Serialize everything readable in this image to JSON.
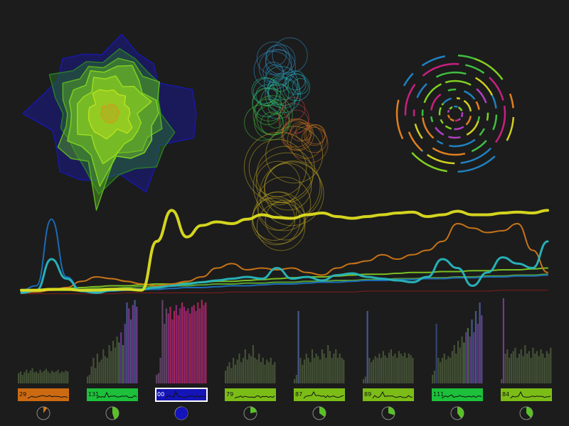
{
  "palette": {
    "background": "#1c1c1c",
    "yellow": "#dede21",
    "teal": "#28b8c0",
    "orange": "#d07818",
    "green": "#7ec824",
    "darkred": "#8a1c1c",
    "blue": "#1060b0",
    "magenta": "#c02088",
    "tile_orange": "#cc6a12",
    "tile_green": "#1cc03a",
    "tile_blue": "#1414b8",
    "tile_lime": "#7bbd16"
  },
  "chart_data": [
    {
      "type": "area",
      "description_key": "radial-blobs-cluster",
      "series": [
        {
          "color": "#1818a8",
          "scale": 1.0
        },
        {
          "color": "#2a7a2a",
          "scale": 0.82
        },
        {
          "color": "#5ab020",
          "scale": 0.7
        },
        {
          "color": "#7ed024",
          "scale": 0.6
        },
        {
          "color": "#9adc20",
          "scale": 0.48
        },
        {
          "color": "#b8e020",
          "scale": 0.3
        },
        {
          "color": "#c8a020",
          "scale": 0.12
        }
      ]
    },
    {
      "type": "scatter",
      "description_key": "bubble-stack",
      "groups": [
        {
          "color": "#3090c8",
          "count": 9
        },
        {
          "color": "#20b0c0",
          "count": 8
        },
        {
          "color": "#28c090",
          "count": 7
        },
        {
          "color": "#40c040",
          "count": 9
        },
        {
          "color": "#c04040",
          "count": 3
        },
        {
          "color": "#c07020",
          "count": 10
        },
        {
          "color": "#b8a020",
          "count": 16
        }
      ]
    },
    {
      "type": "pie",
      "description_key": "concentric-ring-segments",
      "rings": 7,
      "colors": [
        "#e08020",
        "#c82080",
        "#40c040",
        "#80d020",
        "#2080c0",
        "#b040c0",
        "#d0d020"
      ]
    },
    {
      "type": "line",
      "description_key": "time-series-streams",
      "ylim": [
        0,
        1
      ],
      "series": [
        {
          "color": "#dede21",
          "width": 4,
          "values": [
            0.05,
            0.05,
            0.06,
            0.06,
            0.05,
            0.05,
            0.06,
            0.06,
            0.05,
            0.6,
            0.95,
            0.65,
            0.78,
            0.82,
            0.8,
            0.85,
            0.9,
            0.87,
            0.86,
            0.9,
            0.92,
            0.88,
            0.86,
            0.88,
            0.9,
            0.92,
            0.93,
            0.88,
            0.9,
            0.94,
            0.9,
            0.9,
            0.92,
            0.93,
            0.92,
            0.95
          ]
        },
        {
          "color": "#28b8c0",
          "width": 3,
          "values": [
            0.02,
            0.05,
            0.4,
            0.18,
            0.04,
            0.02,
            0.05,
            0.06,
            0.06,
            0.08,
            0.1,
            0.12,
            0.14,
            0.16,
            0.18,
            0.2,
            0.18,
            0.3,
            0.18,
            0.2,
            0.16,
            0.22,
            0.24,
            0.2,
            0.18,
            0.16,
            0.14,
            0.2,
            0.4,
            0.3,
            0.1,
            0.25,
            0.42,
            0.35,
            0.3,
            0.6
          ]
        },
        {
          "color": "#1a70c0",
          "width": 2,
          "values": [
            0.05,
            0.1,
            0.85,
            0.2,
            0.05,
            0.03,
            0.04,
            0.05,
            0.06,
            0.06,
            0.07,
            0.08,
            0.08,
            0.09,
            0.1,
            0.1,
            0.11,
            0.12,
            0.12,
            0.13,
            0.14,
            0.14,
            0.15,
            0.16,
            0.16,
            0.17,
            0.17,
            0.18,
            0.18,
            0.19,
            0.19,
            0.2,
            0.2,
            0.21,
            0.21,
            0.22
          ]
        },
        {
          "color": "#d07818",
          "width": 2,
          "values": [
            0.02,
            0.03,
            0.05,
            0.08,
            0.15,
            0.2,
            0.18,
            0.15,
            0.12,
            0.1,
            0.12,
            0.15,
            0.2,
            0.3,
            0.35,
            0.28,
            0.3,
            0.28,
            0.3,
            0.25,
            0.22,
            0.3,
            0.35,
            0.38,
            0.45,
            0.4,
            0.45,
            0.5,
            0.6,
            0.8,
            0.75,
            0.7,
            0.72,
            0.8,
            0.5,
            0.25
          ]
        },
        {
          "color": "#7ec824",
          "width": 2,
          "values": [
            0.04,
            0.05,
            0.06,
            0.07,
            0.08,
            0.09,
            0.1,
            0.1,
            0.11,
            0.12,
            0.12,
            0.13,
            0.14,
            0.15,
            0.15,
            0.16,
            0.17,
            0.18,
            0.19,
            0.2,
            0.2,
            0.21,
            0.22,
            0.23,
            0.23,
            0.24,
            0.25,
            0.25,
            0.26,
            0.26,
            0.27,
            0.27,
            0.28,
            0.28,
            0.29,
            0.3
          ]
        },
        {
          "color": "#5aa830",
          "width": 2,
          "values": [
            0.03,
            0.04,
            0.05,
            0.05,
            0.06,
            0.07,
            0.07,
            0.08,
            0.09,
            0.09,
            0.1,
            0.1,
            0.11,
            0.12,
            0.12,
            0.13,
            0.13,
            0.14,
            0.14,
            0.15,
            0.15,
            0.16,
            0.16,
            0.17,
            0.17,
            0.18,
            0.18,
            0.19,
            0.19,
            0.2,
            0.2,
            0.21,
            0.21,
            0.22,
            0.22,
            0.23
          ]
        },
        {
          "color": "#8a1c1c",
          "width": 1,
          "values": [
            0.01,
            0.01,
            0.01,
            0.01,
            0.01,
            0.01,
            0.01,
            0.02,
            0.02,
            0.02,
            0.02,
            0.02,
            0.02,
            0.02,
            0.03,
            0.03,
            0.03,
            0.03,
            0.03,
            0.03,
            0.03,
            0.03,
            0.03,
            0.04,
            0.04,
            0.04,
            0.04,
            0.04,
            0.04,
            0.04,
            0.04,
            0.04,
            0.05,
            0.05,
            0.05,
            0.05
          ]
        }
      ]
    },
    {
      "type": "bar",
      "description_key": "small-multiples",
      "panels": [
        {
          "label": "29",
          "tile_color": "#cc6a12",
          "selected": false,
          "pie_fraction": 0.1,
          "spark_peak": 0.2,
          "bars": [
            0.12,
            0.14,
            0.1,
            0.13,
            0.16,
            0.12,
            0.15,
            0.18,
            0.13,
            0.14,
            0.12,
            0.16,
            0.13,
            0.15,
            0.17,
            0.14,
            0.12,
            0.15,
            0.13,
            0.14,
            0.16,
            0.12,
            0.14,
            0.13,
            0.15,
            0.14
          ]
        },
        {
          "label": "131",
          "tile_color": "#1cc03a",
          "selected": false,
          "pie_fraction": 0.45,
          "spark_peak": 0.8,
          "bars": [
            0.08,
            0.1,
            0.2,
            0.3,
            0.18,
            0.35,
            0.25,
            0.28,
            0.4,
            0.32,
            0.3,
            0.45,
            0.38,
            0.5,
            0.42,
            0.55,
            0.48,
            0.6,
            0.45,
            0.7,
            0.95,
            0.88,
            0.75,
            0.92,
            0.98,
            0.9
          ]
        },
        {
          "label": "00",
          "tile_color": "#1414b8",
          "selected": true,
          "pie_fraction": 0.7,
          "spark_peak": 1.0,
          "bars": [
            0.1,
            0.12,
            0.3,
            0.98,
            0.7,
            0.88,
            0.82,
            0.9,
            0.75,
            0.85,
            0.92,
            0.8,
            0.88,
            0.95,
            0.9,
            0.85,
            0.88,
            0.82,
            0.9,
            0.92,
            0.85,
            0.95,
            0.88,
            0.98,
            0.92,
            0.95
          ]
        },
        {
          "label": "79",
          "tile_color": "#7bbd16",
          "selected": false,
          "pie_fraction": 0.22,
          "spark_peak": 0.3,
          "bars": [
            0.15,
            0.2,
            0.25,
            0.18,
            0.3,
            0.22,
            0.28,
            0.35,
            0.25,
            0.3,
            0.4,
            0.28,
            0.35,
            0.32,
            0.45,
            0.3,
            0.28,
            0.35,
            0.25,
            0.3,
            0.22,
            0.28,
            0.25,
            0.3,
            0.22,
            0.25
          ]
        },
        {
          "label": "87",
          "tile_color": "#7bbd16",
          "selected": false,
          "pie_fraction": 0.35,
          "spark_peak": 0.9,
          "bars": [
            0.05,
            0.1,
            0.85,
            0.3,
            0.22,
            0.28,
            0.35,
            0.3,
            0.25,
            0.4,
            0.3,
            0.35,
            0.32,
            0.28,
            0.4,
            0.35,
            0.3,
            0.45,
            0.38,
            0.3,
            0.35,
            0.4,
            0.3,
            0.35,
            0.3,
            0.28
          ]
        },
        {
          "label": "89",
          "tile_color": "#7bbd16",
          "selected": false,
          "pie_fraction": 0.3,
          "spark_peak": 0.9,
          "bars": [
            0.05,
            0.08,
            0.85,
            0.3,
            0.25,
            0.28,
            0.32,
            0.3,
            0.35,
            0.3,
            0.38,
            0.33,
            0.3,
            0.36,
            0.4,
            0.32,
            0.35,
            0.3,
            0.38,
            0.35,
            0.32,
            0.36,
            0.3,
            0.35,
            0.33,
            0.3
          ]
        },
        {
          "label": "111",
          "tile_color": "#1cc03a",
          "selected": false,
          "pie_fraction": 0.4,
          "spark_peak": 0.5,
          "bars": [
            0.1,
            0.15,
            0.7,
            0.3,
            0.25,
            0.3,
            0.35,
            0.28,
            0.32,
            0.3,
            0.38,
            0.45,
            0.35,
            0.5,
            0.42,
            0.55,
            0.48,
            0.6,
            0.65,
            0.55,
            0.75,
            0.6,
            0.85,
            0.7,
            0.95,
            0.8
          ]
        },
        {
          "label": "84",
          "tile_color": "#7bbd16",
          "selected": false,
          "pie_fraction": 0.38,
          "spark_peak": 0.9,
          "bars": [
            0.05,
            1.0,
            0.35,
            0.4,
            0.3,
            0.35,
            0.38,
            0.42,
            0.3,
            0.35,
            0.4,
            0.32,
            0.45,
            0.35,
            0.38,
            0.3,
            0.42,
            0.35,
            0.38,
            0.32,
            0.4,
            0.35,
            0.3,
            0.38,
            0.35,
            0.42
          ]
        }
      ]
    }
  ]
}
